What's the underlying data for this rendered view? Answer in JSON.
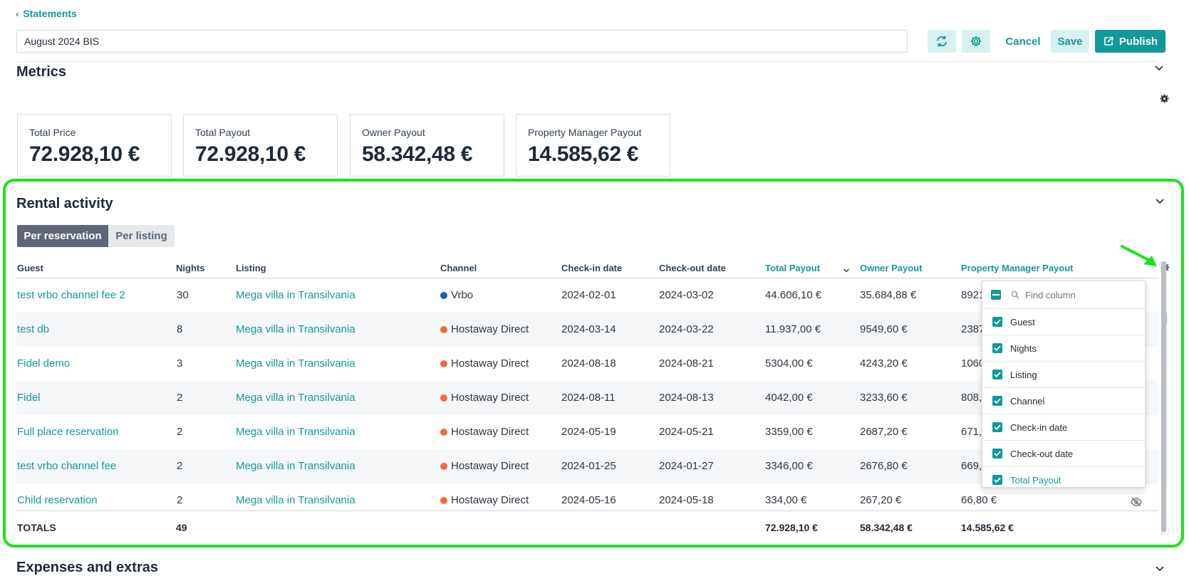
{
  "nav": {
    "back_label": "Statements"
  },
  "header": {
    "title_value": "August 2024 BIS",
    "cancel_label": "Cancel",
    "save_label": "Save",
    "publish_label": "Publish"
  },
  "metrics": {
    "title": "Metrics",
    "cards": [
      {
        "label": "Total Price",
        "value": "72.928,10 €"
      },
      {
        "label": "Total Payout",
        "value": "72.928,10 €"
      },
      {
        "label": "Owner Payout",
        "value": "58.342,48 €"
      },
      {
        "label": "Property Manager Payout",
        "value": "14.585,62 €"
      }
    ]
  },
  "rental": {
    "title": "Rental activity",
    "toggle": [
      "Per reservation",
      "Per listing"
    ],
    "columns": [
      "Guest",
      "Nights",
      "Listing",
      "Channel",
      "Check-in date",
      "Check-out date",
      "Total Payout",
      "Owner Payout",
      "Property Manager Payout"
    ],
    "rows": [
      {
        "guest": "test vrbo channel fee 2",
        "nights": "30",
        "listing": "Mega villa in Transilvania",
        "channel": "Vrbo",
        "checkin": "2024-02-01",
        "checkout": "2024-03-02",
        "total": "44.606,10 €",
        "owner": "35.684,88 €",
        "pm": "8921"
      },
      {
        "guest": "test db",
        "nights": "8",
        "listing": "Mega villa in Transilvania",
        "channel": "Hostaway Direct",
        "checkin": "2024-03-14",
        "checkout": "2024-03-22",
        "total": "11.937,00 €",
        "owner": "9549,60 €",
        "pm": "2387"
      },
      {
        "guest": "Fidel demo",
        "nights": "3",
        "listing": "Mega villa in Transilvania",
        "channel": "Hostaway Direct",
        "checkin": "2024-08-18",
        "checkout": "2024-08-21",
        "total": "5304,00 €",
        "owner": "4243,20 €",
        "pm": "1060"
      },
      {
        "guest": "Fidel",
        "nights": "2",
        "listing": "Mega villa in Transilvania",
        "channel": "Hostaway Direct",
        "checkin": "2024-08-11",
        "checkout": "2024-08-13",
        "total": "4042,00 €",
        "owner": "3233,60 €",
        "pm": "808,"
      },
      {
        "guest": "Full place reservation",
        "nights": "2",
        "listing": "Mega villa in Transilvania",
        "channel": "Hostaway Direct",
        "checkin": "2024-05-19",
        "checkout": "2024-05-21",
        "total": "3359,00 €",
        "owner": "2687,20 €",
        "pm": "671,"
      },
      {
        "guest": "test vrbo channel fee",
        "nights": "2",
        "listing": "Mega villa in Transilvania",
        "channel": "Hostaway Direct",
        "checkin": "2024-01-25",
        "checkout": "2024-01-27",
        "total": "3346,00 €",
        "owner": "2676,80 €",
        "pm": "669,"
      },
      {
        "guest": "Child reservation",
        "nights": "2",
        "listing": "Mega villa in Transilvania",
        "channel": "Hostaway Direct",
        "checkin": "2024-05-16",
        "checkout": "2024-05-18",
        "total": "334,00 €",
        "owner": "267,20 €",
        "pm": "66,80 €"
      }
    ],
    "totals": {
      "label": "TOTALS",
      "nights": "49",
      "total": "72.928,10 €",
      "owner": "58.342,48 €",
      "pm": "14.585,62 €"
    }
  },
  "column_picker": {
    "search_placeholder": "Find column",
    "items": [
      "Guest",
      "Nights",
      "Listing",
      "Channel",
      "Check-in date",
      "Check-out date",
      "Total Payout"
    ]
  },
  "expenses": {
    "title": "Expenses and extras"
  },
  "colors": {
    "accent": "#129a9a",
    "vrbo": "#1c5fb8",
    "hostaway": "#f26b3a",
    "highlight": "#1ee21e"
  }
}
